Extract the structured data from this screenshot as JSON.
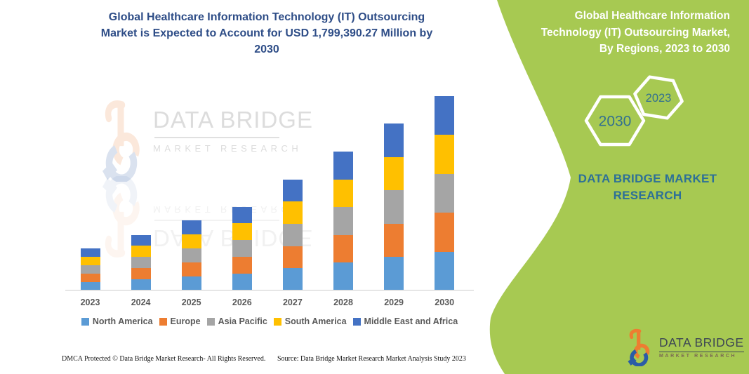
{
  "left_panel": {
    "title_lines": [
      "Global Healthcare Information Technology (IT) Outsourcing",
      "Market is Expected to Account for USD 1,799,390.27 Million by",
      "2030"
    ],
    "watermark": {
      "brand": "DATA BRIDGE",
      "sub": "MARKET  RESEARCH"
    },
    "footer": {
      "dmca": "DMCA Protected © Data Bridge Market Research-  All Rights Reserved.",
      "source": "Source: Data Bridge Market Research  Market Analysis Study 2023"
    }
  },
  "right_panel": {
    "heading_lines": [
      "Global Healthcare Information",
      "Technology (IT) Outsourcing Market,",
      "By Regions, 2023 to 2030"
    ],
    "hexagons": {
      "back_year": "2030",
      "front_year": "2023"
    },
    "brand_text_lines": [
      "DATA BRIDGE MARKET",
      "RESEARCH"
    ],
    "logo": {
      "brand": "DATA BRIDGE",
      "sub": "MARKET  RESEARCH"
    },
    "colors": {
      "panel_green": "#a7c952",
      "heading_text": "#ffffff",
      "hexagon_year_text": "#32708f",
      "brand_text": "#2d7097"
    }
  },
  "chart_data": {
    "type": "bar",
    "stacked": true,
    "title": "Global Healthcare Information Technology (IT) Outsourcing Market is Expected to Account for USD 1,799,390.27 Million by 2030",
    "unit": "USD Million",
    "categories": [
      "2023",
      "2024",
      "2025",
      "2026",
      "2027",
      "2028",
      "2029",
      "2030"
    ],
    "series": [
      {
        "name": "North America",
        "color": "#5b9bd5",
        "values": [
          78000,
          103000,
          129900,
          155000,
          205700,
          257300,
          309200,
          359878.05
        ]
      },
      {
        "name": "Europe",
        "color": "#ed7d31",
        "values": [
          78000,
          103000,
          129900,
          155000,
          205700,
          257300,
          309200,
          359878.05
        ]
      },
      {
        "name": "Asia Pacific",
        "color": "#a5a5a5",
        "values": [
          78000,
          103000,
          129900,
          155000,
          205700,
          257300,
          309200,
          359878.05
        ]
      },
      {
        "name": "South America",
        "color": "#ffc000",
        "values": [
          78000,
          103000,
          129900,
          155000,
          205700,
          257300,
          309200,
          359878.05
        ]
      },
      {
        "name": "Middle East and Africa",
        "color": "#4472c4",
        "values": [
          78000,
          103000,
          129900,
          155000,
          205700,
          257300,
          309200,
          359878.05
        ]
      }
    ],
    "totals_usd_million_est": [
      390000,
      515000,
      649500,
      775000,
      1028500,
      1286500,
      1546000,
      1799390.27
    ],
    "xlabel": "",
    "ylabel": "",
    "axis": {
      "y_axis_visible": false,
      "gridlines": false
    },
    "legend_position": "bottom",
    "note": "No value axis shown; yearly totals estimated from bar heights scaled to the stated 2030 total of USD 1,799,390.27 Million; regional split shown approximately equal."
  }
}
